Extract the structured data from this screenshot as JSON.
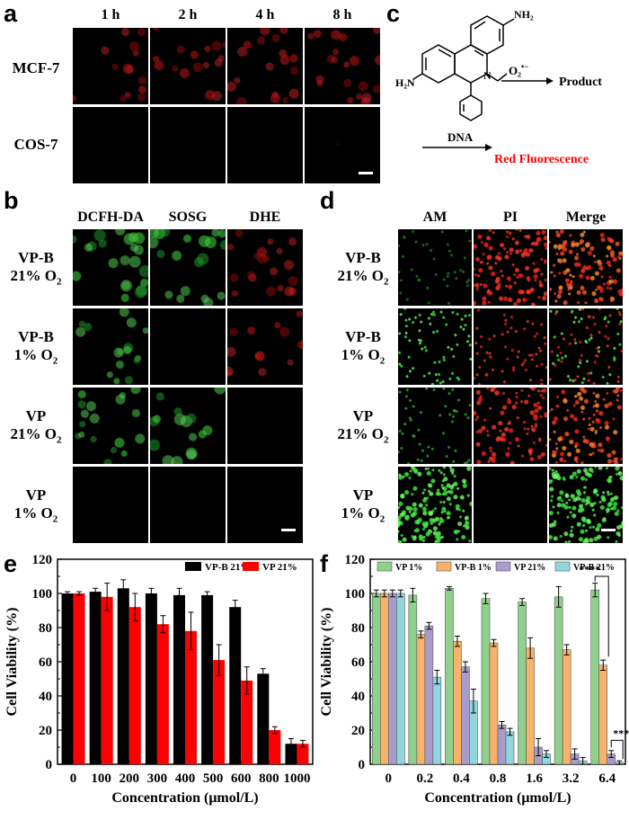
{
  "panel_letters": {
    "a": "a",
    "b": "b",
    "c": "c",
    "d": "d",
    "e": "e",
    "f": "f"
  },
  "panel_a": {
    "columns": [
      "1 h",
      "2 h",
      "4 h",
      "8 h"
    ],
    "rows": [
      "MCF-7",
      "COS-7"
    ]
  },
  "panel_b": {
    "columns": [
      "DCFH-DA",
      "SOSG",
      "DHE"
    ],
    "rows": [
      {
        "line1": "VP-B",
        "o2": "21%",
        "o2_suffix": "O",
        "sub": "2"
      },
      {
        "line1": "VP-B",
        "o2": "1%",
        "o2_suffix": "O",
        "sub": "2"
      },
      {
        "line1": "VP",
        "o2": "21%",
        "o2_suffix": "O",
        "sub": "2"
      },
      {
        "line1": "VP",
        "o2": "1%",
        "o2_suffix": "O",
        "sub": "2"
      }
    ]
  },
  "panel_c": {
    "nh2_top": "NH₂",
    "nh2_left": "H₂N",
    "n_label": "N",
    "reagent": "O₂",
    "reagent_sup": "•−",
    "product": "Product",
    "dna": "DNA",
    "red_fluorescence": "Red Fluorescence"
  },
  "panel_d": {
    "columns": [
      "AM",
      "PI",
      "Merge"
    ],
    "rows": [
      {
        "line1": "VP-B",
        "o2": "21%",
        "o2_suffix": "O",
        "sub": "2"
      },
      {
        "line1": "VP-B",
        "o2": "1%",
        "o2_suffix": "O",
        "sub": "2"
      },
      {
        "line1": "VP",
        "o2": "21%",
        "o2_suffix": "O",
        "sub": "2"
      },
      {
        "line1": "VP",
        "o2": "1%",
        "o2_suffix": "O",
        "sub": "2"
      }
    ]
  },
  "colors": {
    "black_bar": "#000000",
    "red_bar": "#ff0000",
    "vp1": "#8fd18c",
    "vpb1": "#f7b36b",
    "vp21": "#a99ccb",
    "vpb21": "#8fd6dd",
    "red_text": "#ff0000"
  },
  "chart_data": [
    {
      "panel": "e",
      "type": "bar",
      "xlabel": "Concentration (μmol/L)",
      "ylabel": "Cell Viability (%)",
      "ylim": [
        0,
        120
      ],
      "yticks": [
        0,
        20,
        40,
        60,
        80,
        100,
        120
      ],
      "categories": [
        "0",
        "100",
        "200",
        "300",
        "400",
        "500",
        "600",
        "800",
        "1000"
      ],
      "legend_position": "top-right",
      "series": [
        {
          "name": "VP-B 21%",
          "color": "#000000",
          "values": [
            100,
            101,
            103,
            100,
            99,
            99,
            92,
            53,
            12
          ],
          "errors": [
            1,
            2,
            5,
            3,
            4,
            2,
            4,
            3,
            3
          ]
        },
        {
          "name": "VP 21%",
          "color": "#ff0000",
          "values": [
            100,
            98,
            92,
            82,
            78,
            61,
            49,
            20,
            12
          ],
          "errors": [
            1,
            8,
            8,
            5,
            11,
            9,
            8,
            2,
            2
          ]
        }
      ]
    },
    {
      "panel": "f",
      "type": "bar",
      "xlabel": "Concentration (μmol/L)",
      "ylabel": "Cell Viability (%)",
      "ylim": [
        0,
        120
      ],
      "yticks": [
        0,
        20,
        40,
        60,
        80,
        100,
        120
      ],
      "categories": [
        "0",
        "0.2",
        "0.4",
        "0.8",
        "1.6",
        "3.2",
        "6.4"
      ],
      "legend_position": "top",
      "series": [
        {
          "name": "VP 1%",
          "color": "#8fd18c",
          "values": [
            100,
            99,
            103,
            97,
            95,
            98,
            102
          ],
          "errors": [
            2,
            4,
            1,
            3,
            2,
            6,
            4
          ]
        },
        {
          "name": "VP-B 1%",
          "color": "#f7b36b",
          "values": [
            100,
            76,
            72,
            71,
            68,
            67,
            58
          ],
          "errors": [
            2,
            2,
            3,
            2,
            6,
            3,
            3
          ]
        },
        {
          "name": "VP 21%",
          "color": "#a99ccb",
          "values": [
            100,
            81,
            57,
            23,
            10,
            6,
            6
          ],
          "errors": [
            2,
            2,
            3,
            2,
            5,
            3,
            2
          ]
        },
        {
          "name": "VP-B 21%",
          "color": "#8fd6dd",
          "values": [
            100,
            51,
            37,
            19,
            6,
            2,
            1
          ],
          "errors": [
            2,
            4,
            7,
            2,
            2,
            2,
            1
          ]
        }
      ],
      "annotations": [
        "****",
        "***"
      ]
    }
  ]
}
